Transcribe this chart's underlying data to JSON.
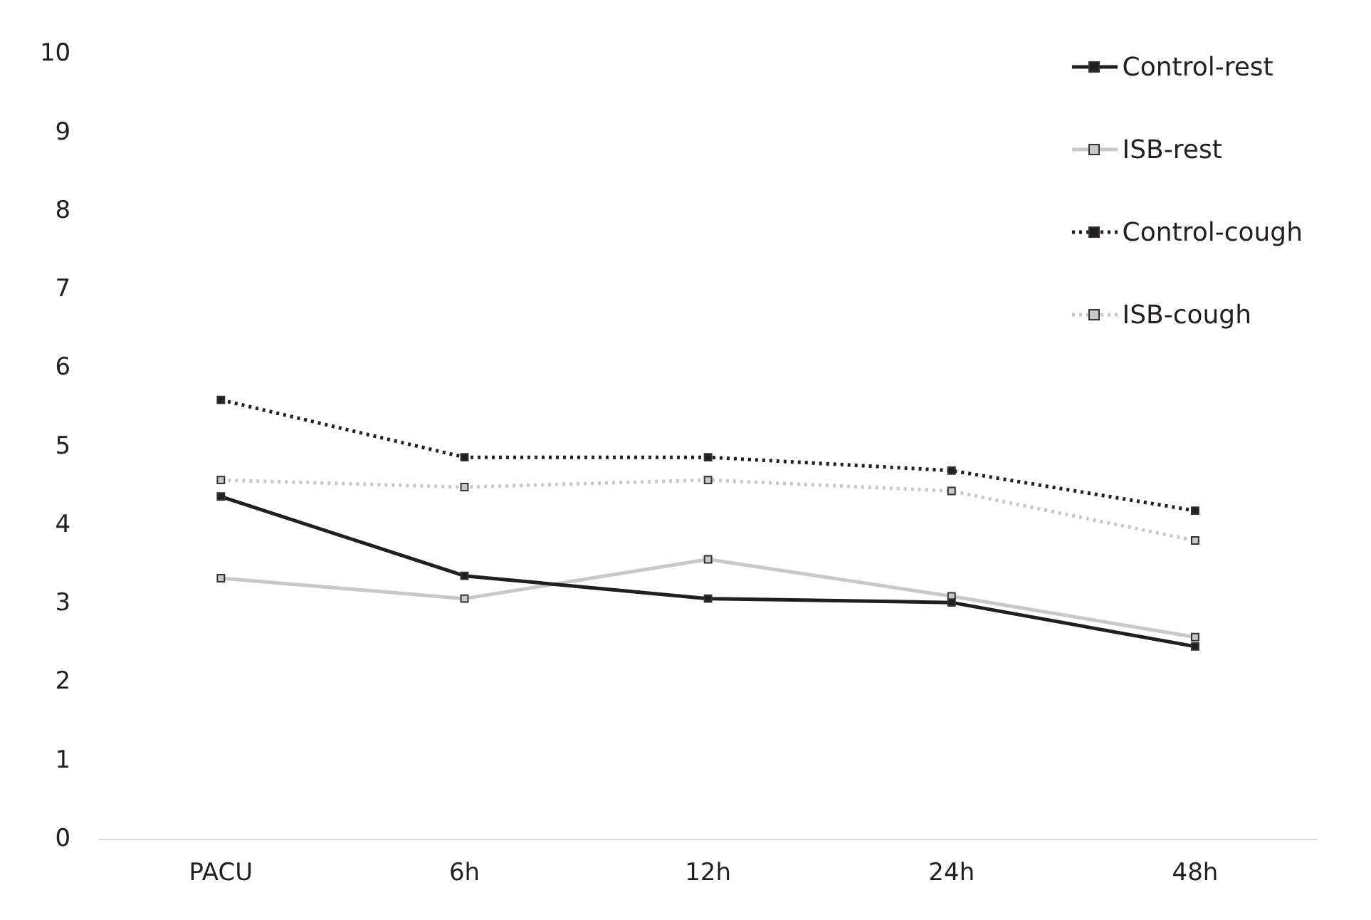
{
  "chart_data": {
    "type": "line",
    "categories": [
      "PACU",
      "6h",
      "12h",
      "24h",
      "48h"
    ],
    "series": [
      {
        "name": "Control-rest",
        "color": "#231f20",
        "values": [
          4.37,
          3.36,
          3.07,
          3.02,
          2.46
        ],
        "line_style": "solid"
      },
      {
        "name": "ISB-rest",
        "color": "#c8c8c8",
        "values": [
          3.33,
          3.07,
          3.57,
          3.1,
          2.58
        ],
        "line_style": "solid"
      },
      {
        "name": "Control-cough",
        "color": "#231f20",
        "values": [
          5.6,
          4.87,
          4.87,
          4.7,
          4.19
        ],
        "line_style": "dotted"
      },
      {
        "name": "ISB-cough",
        "color": "#c8c8c8",
        "values": [
          4.58,
          4.49,
          4.58,
          4.44,
          3.81
        ],
        "line_style": "dotted"
      }
    ],
    "ylim": [
      0,
      10
    ],
    "yticks": [
      0,
      1,
      2,
      3,
      4,
      5,
      6,
      7,
      8,
      9,
      10
    ],
    "grid": false,
    "legend": "top right",
    "marker": "square"
  }
}
